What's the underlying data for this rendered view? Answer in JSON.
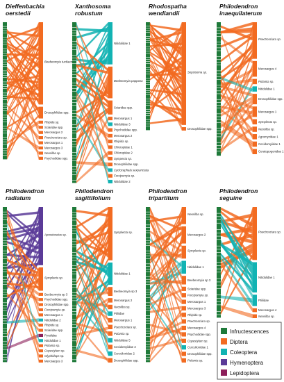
{
  "colors": {
    "infructescences": "#1f7a3a",
    "diptera": "#f26b21",
    "coleoptera": "#12b3b3",
    "hymenoptera": "#5b3b98",
    "lepidoptera": "#8c1f5a"
  },
  "legend": [
    {
      "label": "Infructescences",
      "color_key": "infructescences"
    },
    {
      "label": "Diptera",
      "color_key": "diptera"
    },
    {
      "label": "Coleoptera",
      "color_key": "coleoptera"
    },
    {
      "label": "Hymenoptera",
      "color_key": "hymenoptera"
    },
    {
      "label": "Lepidoptera",
      "color_key": "lepidoptera"
    }
  ],
  "panels": [
    {
      "title_line1": "Dieffenbachia",
      "title_line2": "oerstedii",
      "infructescence_count": 62,
      "taxa": [
        {
          "name": "Beebeomyia tuxtlaensis",
          "group": "diptera",
          "weight": 28,
          "italic": true
        },
        {
          "name": "Drosophilidae spp.",
          "group": "diptera",
          "weight": 4
        },
        {
          "name": "Rhipida sp.",
          "group": "diptera",
          "weight": 1,
          "italic": true
        },
        {
          "name": "Sciaridae spp.",
          "group": "diptera",
          "weight": 1
        },
        {
          "name": "Merosargus 2",
          "group": "diptera",
          "weight": 1
        },
        {
          "name": "Psectrosciara sp.",
          "group": "diptera",
          "weight": 1,
          "italic": true
        },
        {
          "name": "Merosargus 1",
          "group": "diptera",
          "weight": 1
        },
        {
          "name": "Merosargus 3",
          "group": "diptera",
          "weight": 1
        },
        {
          "name": "Neosilba sp.",
          "group": "diptera",
          "weight": 1,
          "italic": true
        },
        {
          "name": "Psychodidae spp.",
          "group": "diptera",
          "weight": 1
        }
      ]
    },
    {
      "title_line1": "Xanthosoma",
      "title_line2": "robustum",
      "infructescence_count": 58,
      "taxa": [
        {
          "name": "Nitidulidae 1",
          "group": "coleoptera",
          "weight": 12
        },
        {
          "name": "Beebeomyia papposa",
          "group": "diptera",
          "weight": 9,
          "italic": true
        },
        {
          "name": "Sciaridae spp.",
          "group": "diptera",
          "weight": 4
        },
        {
          "name": "Merosargus 1",
          "group": "diptera",
          "weight": 1
        },
        {
          "name": "Nitidulidae 3",
          "group": "coleoptera",
          "weight": 1
        },
        {
          "name": "Psychodidae spp.",
          "group": "diptera",
          "weight": 1
        },
        {
          "name": "Merosargus 2",
          "group": "diptera",
          "weight": 1
        },
        {
          "name": "Rhipida sp.",
          "group": "diptera",
          "weight": 1,
          "italic": true
        },
        {
          "name": "Chloropidae 1",
          "group": "diptera",
          "weight": 1
        },
        {
          "name": "Chloropidae 2",
          "group": "diptera",
          "weight": 1
        },
        {
          "name": "Sympecta sp.",
          "group": "diptera",
          "weight": 1,
          "italic": true
        },
        {
          "name": "Drosophilidae spp.",
          "group": "diptera",
          "weight": 1
        },
        {
          "name": "Cyclocephala sexpunctata",
          "group": "coleoptera",
          "weight": 1,
          "italic": true
        },
        {
          "name": "Forcipomyia sp.",
          "group": "diptera",
          "weight": 1,
          "italic": true
        },
        {
          "name": "Nitidulidae 2",
          "group": "coleoptera",
          "weight": 1
        }
      ]
    },
    {
      "title_line1": "Rhodospatha",
      "title_line2": "wendlandii",
      "infructescence_count": 52,
      "taxa": [
        {
          "name": "Sepsisoma sp.",
          "group": "diptera",
          "weight": 30,
          "italic": true
        },
        {
          "name": "Drosophilidae spp.",
          "group": "diptera",
          "weight": 1
        }
      ]
    },
    {
      "title_line1": "Philodendron",
      "title_line2": "inaequilaterum",
      "infructescence_count": 46,
      "taxa": [
        {
          "name": "Psectrosciara sp.",
          "group": "diptera",
          "weight": 7,
          "italic": true
        },
        {
          "name": "Merosargus 4",
          "group": "diptera",
          "weight": 3
        },
        {
          "name": "Polamia sp.",
          "group": "diptera",
          "weight": 1,
          "italic": true
        },
        {
          "name": "Nitidulidae 1",
          "group": "coleoptera",
          "weight": 1
        },
        {
          "name": "Drosophilidae spp.",
          "group": "diptera",
          "weight": 2
        },
        {
          "name": "Merosargus 1",
          "group": "diptera",
          "weight": 2
        },
        {
          "name": "Symplecta sp.",
          "group": "diptera",
          "weight": 1,
          "italic": true
        },
        {
          "name": "Neosilba sp.",
          "group": "diptera",
          "weight": 1,
          "italic": true
        },
        {
          "name": "Agromyzidae 1",
          "group": "diptera",
          "weight": 1
        },
        {
          "name": "Cecidomyiidae 1",
          "group": "diptera",
          "weight": 1
        },
        {
          "name": "Ceratopogonidae 1",
          "group": "diptera",
          "weight": 1
        }
      ]
    },
    {
      "title_line1": "Philodendron",
      "title_line2": "radiatum",
      "infructescence_count": 60,
      "taxa": [
        {
          "name": "Aprostocetus sp.",
          "group": "hymenoptera",
          "weight": 20,
          "italic": true
        },
        {
          "name": "Symplecta sp.",
          "group": "diptera",
          "weight": 8,
          "italic": true
        },
        {
          "name": "Beebeomyia sp 3",
          "group": "diptera",
          "weight": 1
        },
        {
          "name": "Psychodidae spp.",
          "group": "diptera",
          "weight": 1
        },
        {
          "name": "Drosophilidae spp.",
          "group": "diptera",
          "weight": 1
        },
        {
          "name": "Forcipomyia sp.",
          "group": "diptera",
          "weight": 1,
          "italic": true
        },
        {
          "name": "Merosargus 1",
          "group": "diptera",
          "weight": 1
        },
        {
          "name": "Nitidulidae 2",
          "group": "coleoptera",
          "weight": 1
        },
        {
          "name": "Rhipida sp.",
          "group": "diptera",
          "weight": 1,
          "italic": true
        },
        {
          "name": "Sciaridae spp.",
          "group": "diptera",
          "weight": 1
        },
        {
          "name": "Pyralidae",
          "group": "lepidoptera",
          "weight": 1
        },
        {
          "name": "Nitidulidae 1",
          "group": "coleoptera",
          "weight": 1
        },
        {
          "name": "Polamia sp.",
          "group": "diptera",
          "weight": 1,
          "italic": true
        },
        {
          "name": "Copestylum sp.",
          "group": "diptera",
          "weight": 1,
          "italic": true
        },
        {
          "name": "Glyphidops sp.",
          "group": "diptera",
          "weight": 1,
          "italic": true
        },
        {
          "name": "Merosargus 3",
          "group": "diptera",
          "weight": 1
        }
      ]
    },
    {
      "title_line1": "Philodendron",
      "title_line2": "sagittifolium",
      "infructescence_count": 58,
      "taxa": [
        {
          "name": "Symplecta sp.",
          "group": "diptera",
          "weight": 12,
          "italic": true
        },
        {
          "name": "Nitidulidae 1",
          "group": "coleoptera",
          "weight": 5
        },
        {
          "name": "Beebeomyia sp 3",
          "group": "diptera",
          "weight": 2
        },
        {
          "name": "Merosargus 2",
          "group": "diptera",
          "weight": 1
        },
        {
          "name": "Neosilba sp.",
          "group": "diptera",
          "weight": 1,
          "italic": true
        },
        {
          "name": "Ptiliidae",
          "group": "coleoptera",
          "weight": 1
        },
        {
          "name": "Merosargus 1",
          "group": "diptera",
          "weight": 1
        },
        {
          "name": "Psectrosciara sp.",
          "group": "diptera",
          "weight": 1,
          "italic": true
        },
        {
          "name": "Polamia sp.",
          "group": "diptera",
          "weight": 1,
          "italic": true
        },
        {
          "name": "Nitidulidae 5",
          "group": "coleoptera",
          "weight": 1
        },
        {
          "name": "Cecidomyiidae 2",
          "group": "diptera",
          "weight": 1
        },
        {
          "name": "Curculionidae 2",
          "group": "coleoptera",
          "weight": 1
        },
        {
          "name": "Drosophilidae spp.",
          "group": "diptera",
          "weight": 1
        }
      ]
    },
    {
      "title_line1": "Philodendron",
      "title_line2": "tripartitum",
      "infructescence_count": 60,
      "taxa": [
        {
          "name": "Neosilba sp.",
          "group": "diptera",
          "weight": 4,
          "italic": true
        },
        {
          "name": "Merosargus 2",
          "group": "diptera",
          "weight": 4
        },
        {
          "name": "Symplecta sp.",
          "group": "diptera",
          "weight": 3,
          "italic": true
        },
        {
          "name": "Nitidulidae 1",
          "group": "coleoptera",
          "weight": 3
        },
        {
          "name": "Beebeomyia sp 3",
          "group": "diptera",
          "weight": 2
        },
        {
          "name": "Sciaridae spp.",
          "group": "diptera",
          "weight": 1
        },
        {
          "name": "Forcipomyia sp.",
          "group": "diptera",
          "weight": 1,
          "italic": true
        },
        {
          "name": "Merosargus 1",
          "group": "diptera",
          "weight": 1
        },
        {
          "name": "Merosargus 3",
          "group": "diptera",
          "weight": 1
        },
        {
          "name": "Rhipida sp.",
          "group": "diptera",
          "weight": 1,
          "italic": true
        },
        {
          "name": "Psectrosciara sp.",
          "group": "diptera",
          "weight": 1,
          "italic": true
        },
        {
          "name": "Merosargus 4",
          "group": "diptera",
          "weight": 1
        },
        {
          "name": "Psychodidae spp.",
          "group": "diptera",
          "weight": 1
        },
        {
          "name": "Copestylum sp.",
          "group": "diptera",
          "weight": 1,
          "italic": true
        },
        {
          "name": "Curculionidae 1",
          "group": "coleoptera",
          "weight": 1
        },
        {
          "name": "Drosophilidae spp.",
          "group": "diptera",
          "weight": 1
        },
        {
          "name": "Polamia sp.",
          "group": "diptera",
          "weight": 1,
          "italic": true
        }
      ]
    },
    {
      "title_line1": "Philodendron",
      "title_line2": "seguine",
      "infructescence_count": 34,
      "taxa": [
        {
          "name": "Psectrosciara sp.",
          "group": "diptera",
          "weight": 14,
          "italic": true
        },
        {
          "name": "Nitidulidae 1",
          "group": "coleoptera",
          "weight": 8
        },
        {
          "name": "Ptiliidae",
          "group": "coleoptera",
          "weight": 3
        },
        {
          "name": "Merosargus 4",
          "group": "diptera",
          "weight": 1
        },
        {
          "name": "Neosilba sp.",
          "group": "diptera",
          "weight": 1,
          "italic": true
        }
      ]
    }
  ]
}
